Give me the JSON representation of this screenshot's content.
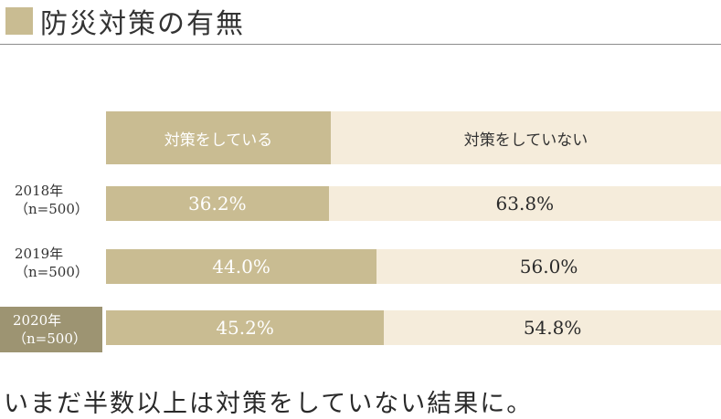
{
  "header": {
    "title": "防災対策の有無"
  },
  "chart_data": {
    "type": "bar",
    "orientation": "horizontal-stacked-percent",
    "title": "防災対策の有無",
    "legend": [
      "対策をしている",
      "対策をしていない"
    ],
    "categories": [
      {
        "year": "2018年",
        "n": "（n=500）"
      },
      {
        "year": "2019年",
        "n": "（n=500）"
      },
      {
        "year": "2020年",
        "n": "（n=500）"
      }
    ],
    "series": [
      {
        "name": "対策をしている",
        "values": [
          36.2,
          44.0,
          45.2
        ],
        "labels": [
          "36.2%",
          "44.0%",
          "45.2%"
        ],
        "color": "#c9bc92"
      },
      {
        "name": "対策をしていない",
        "values": [
          63.8,
          56.0,
          54.8
        ],
        "labels": [
          "63.8%",
          "56.0%",
          "54.8%"
        ],
        "color": "#f5ecdb"
      }
    ],
    "highlight_index": 2,
    "highlight_color": "#9d9472",
    "xlim": [
      0,
      100
    ]
  },
  "footer": {
    "text": "いまだ半数以上は対策をしていない結果に。"
  }
}
